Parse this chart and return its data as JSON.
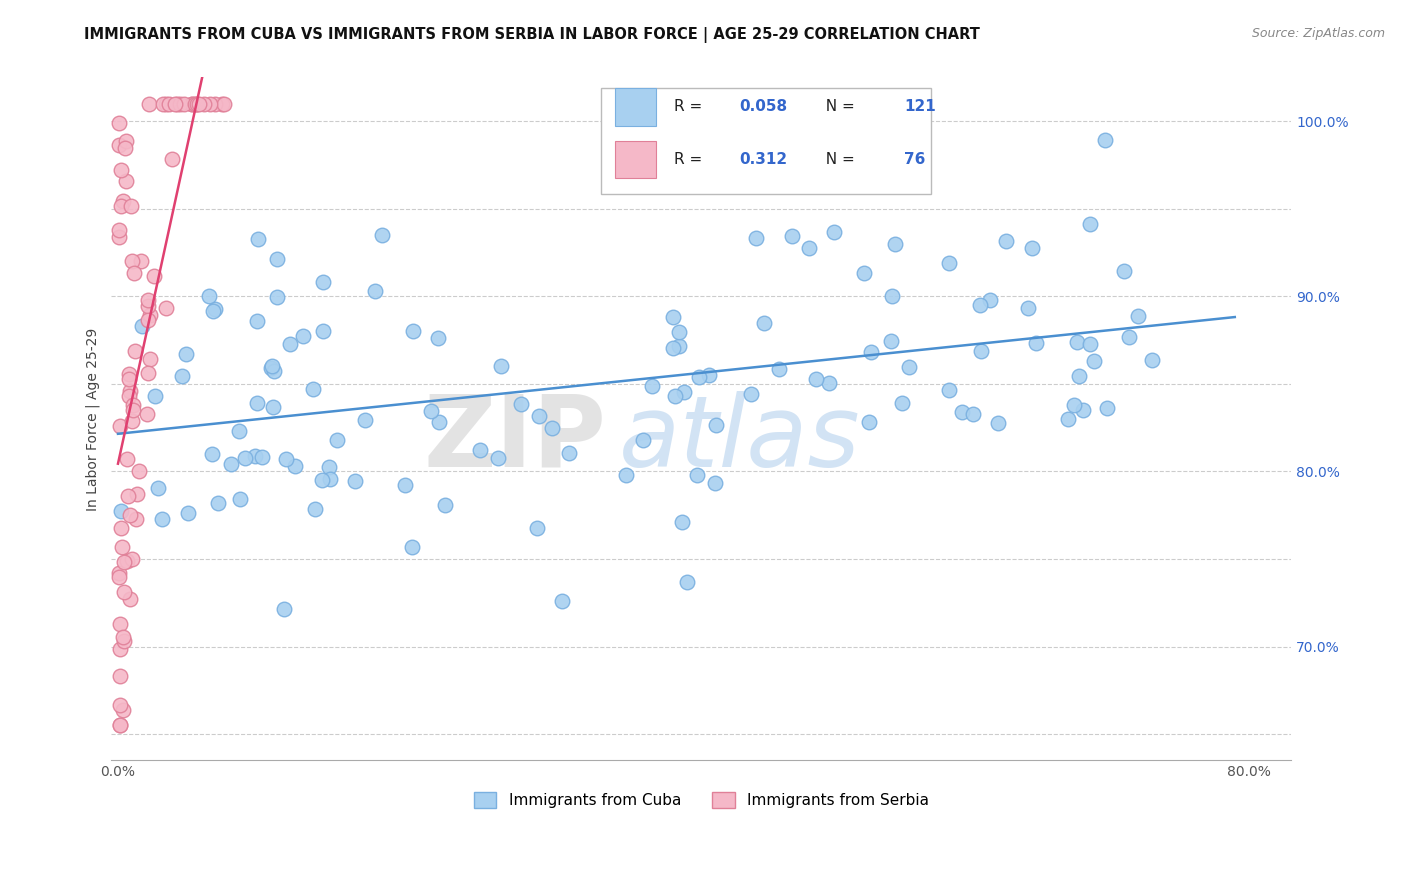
{
  "title": "IMMIGRANTS FROM CUBA VS IMMIGRANTS FROM SERBIA IN LABOR FORCE | AGE 25-29 CORRELATION CHART",
  "source": "Source: ZipAtlas.com",
  "ylabel": "In Labor Force | Age 25-29",
  "cuba_color": "#a8d0f0",
  "cuba_edge_color": "#7ab0e0",
  "serbia_color": "#f5b8c8",
  "serbia_edge_color": "#e08098",
  "trend_cuba_color": "#4a8fd0",
  "trend_serbia_color": "#e04070",
  "r_value_color": "#3366cc",
  "n_value_color": "#3366cc",
  "watermark_zip_color": "#d8d8d8",
  "watermark_atlas_color": "#c0d8f0",
  "legend_bg_color": "#ffffff",
  "legend_border_color": "#bbbbbb",
  "grid_color": "#cccccc",
  "xlim_min": -0.005,
  "xlim_max": 0.83,
  "ylim_min": 0.635,
  "ylim_max": 1.025,
  "ytick_positions": [
    0.65,
    0.7,
    0.75,
    0.8,
    0.85,
    0.9,
    0.95,
    1.0
  ],
  "ytick_labels": [
    "",
    "70.0%",
    "",
    "80.0%",
    "",
    "90.0%",
    "",
    "100.0%"
  ],
  "xtick_positions": [
    0.0,
    0.1,
    0.2,
    0.3,
    0.4,
    0.5,
    0.6,
    0.7,
    0.8
  ],
  "xtick_labels": [
    "0.0%",
    "",
    "",
    "",
    "",
    "",
    "",
    "",
    "80.0%"
  ]
}
